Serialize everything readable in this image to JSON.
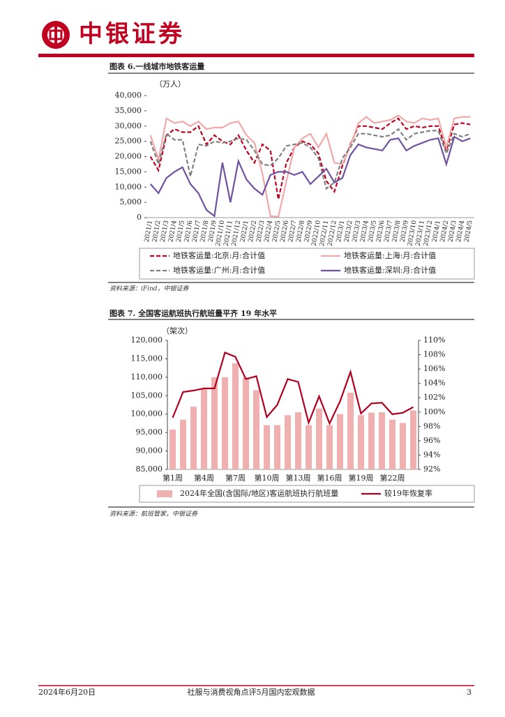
{
  "header": {
    "brand": "中银证券"
  },
  "figures": [
    {
      "title": "图表 6.一线城市地铁客运量",
      "source": "资料来源：iFind，中银证券"
    },
    {
      "title": "图表 7. 全国客运航班执行航班量平齐 19 年水平",
      "source": "资料来源：航班管家，中银证券"
    }
  ],
  "chart_data": [
    {
      "type": "line",
      "y_label": "（万人）",
      "categories": [
        "2021/1",
        "2021/2",
        "2021/3",
        "2021/4",
        "2021/5",
        "2021/6",
        "2021/7",
        "2021/8",
        "2021/9",
        "2021/10",
        "2021/11",
        "2021/12",
        "2022/1",
        "2022/2",
        "2022/3",
        "2022/4",
        "2022/5",
        "2022/6",
        "2022/7",
        "2022/8",
        "2022/9",
        "2022/10",
        "2022/11",
        "2022/12",
        "2023/1",
        "2023/2",
        "2023/3",
        "2023/4",
        "2023/5",
        "2023/6",
        "2023/7",
        "2023/8",
        "2023/9",
        "2023/10",
        "2023/11",
        "2023/12",
        "2024/1",
        "2024/2",
        "2024/3",
        "2024/4",
        "2024/5"
      ],
      "ylim": [
        0,
        40000
      ],
      "yticks": [
        0,
        {
          "value": 5000,
          "label": "5,000"
        },
        {
          "value": 10000,
          "label": "10,000"
        },
        {
          "value": 15000,
          "label": "15,000"
        },
        {
          "value": 20000,
          "label": "20,000"
        },
        {
          "value": 25000,
          "label": "25,000"
        },
        {
          "value": 30000,
          "label": "30,000"
        },
        {
          "value": 35000,
          "label": "35,000"
        },
        {
          "value": 40000,
          "label": "40,000"
        }
      ],
      "grid": false,
      "series": [
        {
          "name": "地铁客运量:北京:月:合计值",
          "color": "#c00020",
          "dashed": true,
          "values": [
            20000,
            15500,
            27000,
            29000,
            28000,
            28000,
            30000,
            24000,
            27000,
            25000,
            24000,
            27000,
            22000,
            18000,
            24000,
            22000,
            6000,
            18000,
            23000,
            25000,
            24000,
            21000,
            12000,
            8500,
            17000,
            24000,
            30000,
            30000,
            29500,
            29000,
            31000,
            32500,
            29000,
            30000,
            29500,
            30000,
            30000,
            22000,
            30500,
            31000,
            30500
          ]
        },
        {
          "name": "地铁客运量:上海:月:合计值",
          "color": "#f0a8a8",
          "dashed": false,
          "values": [
            27000,
            19000,
            32500,
            31000,
            31500,
            30000,
            31500,
            29000,
            29500,
            29500,
            31000,
            31500,
            27000,
            24500,
            14500,
            500,
            300,
            12000,
            23000,
            26000,
            27500,
            23000,
            27500,
            18000,
            17500,
            23500,
            31000,
            33000,
            31000,
            31500,
            32000,
            33500,
            31500,
            31000,
            32500,
            32000,
            32500,
            23000,
            32500,
            33000,
            33000
          ]
        },
        {
          "name": "地铁客运量:广州:月:合计值",
          "color": "#808080",
          "dashed": true,
          "values": [
            25000,
            17500,
            27500,
            25500,
            25500,
            13500,
            24000,
            23500,
            25000,
            24500,
            25000,
            26000,
            25500,
            22000,
            17500,
            17000,
            19500,
            23500,
            24000,
            24500,
            23000,
            19500,
            9500,
            11500,
            19500,
            23000,
            27500,
            27500,
            27000,
            26500,
            27000,
            29000,
            25500,
            27500,
            28000,
            28500,
            28500,
            21000,
            27500,
            26500,
            27500
          ]
        },
        {
          "name": "地铁客运量:深圳:月:合计值",
          "color": "#7050a0",
          "dashed": false,
          "values": [
            11000,
            8000,
            13000,
            15000,
            16500,
            11000,
            8000,
            2500,
            500,
            18000,
            5000,
            18500,
            12500,
            9500,
            7500,
            14000,
            15000,
            15000,
            14000,
            15000,
            11000,
            13500,
            16000,
            11500,
            13000,
            20500,
            24000,
            23000,
            22500,
            22000,
            25500,
            26000,
            22000,
            23500,
            24500,
            25500,
            26000,
            17500,
            26500,
            25000,
            26000
          ]
        }
      ]
    },
    {
      "type": "combo",
      "y_label": "（架次）",
      "categories": [
        "第1周",
        null,
        null,
        "第4周",
        null,
        null,
        "第7周",
        null,
        null,
        "第10周",
        null,
        null,
        "第13周",
        null,
        null,
        "第16周",
        null,
        null,
        "第19周",
        null,
        null,
        "第22周",
        null,
        null
      ],
      "ylim": [
        85000,
        120000
      ],
      "yticks": [
        {
          "value": 85000,
          "label": "85,000"
        },
        {
          "value": 90000,
          "label": "90,000"
        },
        {
          "value": 95000,
          "label": "95,000"
        },
        {
          "value": 100000,
          "label": "100,000"
        },
        {
          "value": 105000,
          "label": "105,000"
        },
        {
          "value": 110000,
          "label": "110,000"
        },
        {
          "value": 115000,
          "label": "115,000"
        },
        {
          "value": 120000,
          "label": "120,000"
        }
      ],
      "y2lim": [
        92,
        110
      ],
      "y2ticks": [
        {
          "value": 92,
          "label": "92%"
        },
        {
          "value": 94,
          "label": "94%"
        },
        {
          "value": 96,
          "label": "96%"
        },
        {
          "value": 98,
          "label": "98%"
        },
        {
          "value": 100,
          "label": "100%"
        },
        {
          "value": 102,
          "label": "102%"
        },
        {
          "value": 104,
          "label": "104%"
        },
        {
          "value": 106,
          "label": "106%"
        },
        {
          "value": 108,
          "label": "108%"
        },
        {
          "value": 110,
          "label": "110%"
        }
      ],
      "grid": false,
      "series": [
        {
          "name": "2024年全国(含国际/地区)客运航班执行航班量",
          "type": "bar",
          "color": "#f0b0b0",
          "values": [
            95800,
            98500,
            102000,
            107000,
            110000,
            110000,
            113800,
            110000,
            106500,
            97000,
            97000,
            99700,
            100500,
            97000,
            101500,
            97000,
            100000,
            105800,
            99700,
            100400,
            100500,
            98500,
            97600,
            101000
          ]
        },
        {
          "name": "较19年恢复率",
          "type": "line",
          "axis": "y2",
          "color": "#b00020",
          "dashed": false,
          "values": [
            99.2,
            102.8,
            103,
            103.3,
            103.3,
            108.3,
            107.7,
            104.6,
            105,
            99.3,
            101,
            104.6,
            104.2,
            98.5,
            102.2,
            98.4,
            101.5,
            105.6,
            99.8,
            101.2,
            101.3,
            99.7,
            99.9,
            100.7
          ]
        }
      ]
    }
  ],
  "footer": {
    "date": "2024年6月20日",
    "title": "社服与消费视角点评5月国内宏观数据",
    "page": 3
  }
}
